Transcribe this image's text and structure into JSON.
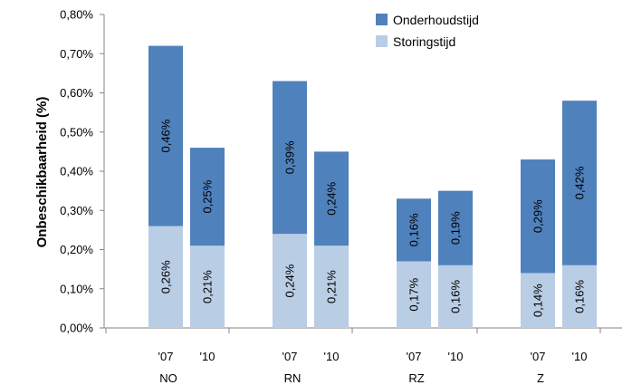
{
  "chart_data": {
    "type": "bar",
    "stacked": true,
    "ylabel": "Onbeschikbaarheid (%)",
    "ylim": [
      0,
      0.8
    ],
    "yticks": [
      "0,00%",
      "0,10%",
      "0,20%",
      "0,30%",
      "0,40%",
      "0,50%",
      "0,60%",
      "0,70%",
      "0,80%"
    ],
    "groups": [
      "NO",
      "RN",
      "RZ",
      "Z"
    ],
    "categories": [
      "'07",
      "'10",
      "'07",
      "'10",
      "'07",
      "'10",
      "'07",
      "'10"
    ],
    "series": [
      {
        "name": "Storingstijd",
        "color": "#b9cde5",
        "values": [
          0.26,
          0.21,
          0.24,
          0.21,
          0.17,
          0.16,
          0.14,
          0.16
        ],
        "labels": [
          "0,26%",
          "0,21%",
          "0,24%",
          "0,21%",
          "0,17%",
          "0,16%",
          "0,14%",
          "0,16%"
        ]
      },
      {
        "name": "Onderhoudstijd",
        "color": "#4f81bd",
        "values": [
          0.46,
          0.25,
          0.39,
          0.24,
          0.16,
          0.19,
          0.29,
          0.42
        ],
        "labels": [
          "0,46%",
          "0,25%",
          "0,39%",
          "0,24%",
          "0,16%",
          "0,19%",
          "0,29%",
          "0,42%"
        ]
      }
    ],
    "legend": [
      "Onderhoudstijd",
      "Storingstijd"
    ],
    "legend_position": "top-right",
    "grid": false
  }
}
